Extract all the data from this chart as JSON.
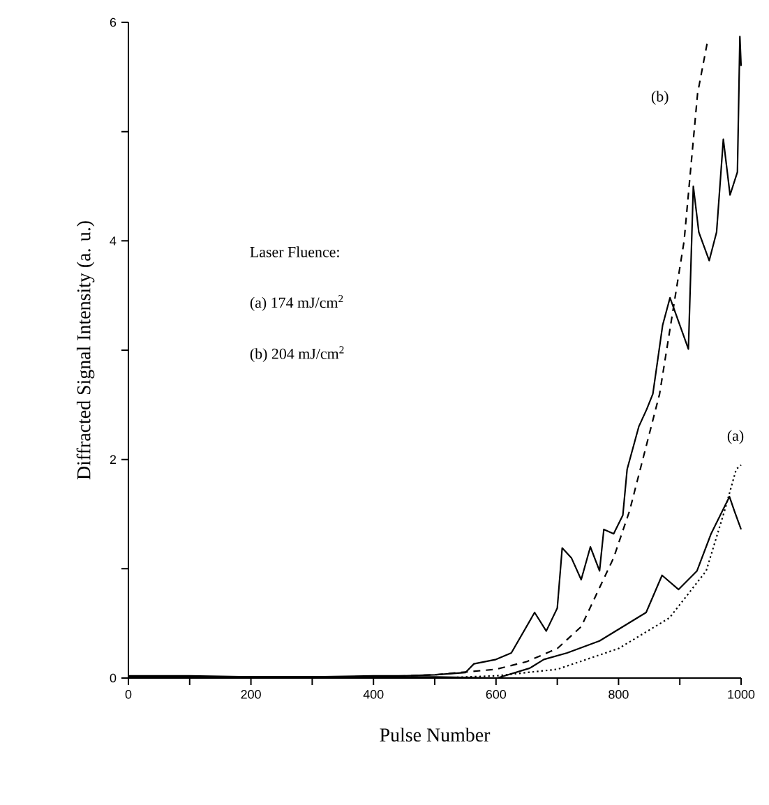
{
  "chart_data": {
    "type": "line",
    "xlabel": "Pulse Number",
    "ylabel": "Diffracted Signal Intensity (a. u.)",
    "xlim": [
      0,
      1000
    ],
    "ylim": [
      0,
      6
    ],
    "xticks": [
      0,
      {
        "value": 100,
        "label": null
      },
      200,
      {
        "value": 300,
        "label": null
      },
      400,
      {
        "value": 500,
        "label": null
      },
      600,
      {
        "value": 700,
        "label": null
      },
      800,
      {
        "value": 900,
        "label": null
      },
      1000
    ],
    "yticks": [
      0,
      {
        "value": 1,
        "label": null
      },
      2,
      {
        "value": 3,
        "label": null
      },
      4,
      {
        "value": 5,
        "label": null
      },
      6
    ],
    "grid": false,
    "legend": false,
    "marker": "none",
    "annotations": [
      "Laser Fluence:",
      "(a) 174 mJ/cm$^{2}$",
      "(b) 204 mJ/cm$^{2}$"
    ],
    "series": [
      {
        "color": "#000000",
        "line_style": "solid",
        "x": [
          0,
          100,
          200,
          300,
          400,
          450,
          500,
          550,
          564,
          600,
          625,
          663,
          682,
          700,
          708,
          723,
          739,
          754,
          769,
          776,
          792,
          807,
          814,
          833,
          846,
          856,
          872,
          884,
          914,
          922,
          931,
          948,
          960,
          971,
          982,
          994,
          998,
          1000
        ],
        "values": [
          0.02,
          0.02,
          0.01,
          0.01,
          0.02,
          0.02,
          0.03,
          0.05,
          0.13,
          0.17,
          0.23,
          0.6,
          0.43,
          0.64,
          1.19,
          1.1,
          0.9,
          1.2,
          0.98,
          1.36,
          1.32,
          1.49,
          1.91,
          2.3,
          2.46,
          2.6,
          3.23,
          3.48,
          3.01,
          4.5,
          4.08,
          3.82,
          4.08,
          4.93,
          4.42,
          4.63,
          5.87,
          5.6
        ]
      },
      {
        "name": "(b)",
        "color": "#000000",
        "line_style": "dashed",
        "x": [
          400,
          500,
          600,
          650,
          700,
          739,
          792,
          818,
          867,
          907,
          929,
          945
        ],
        "values": [
          0.01,
          0.03,
          0.08,
          0.15,
          0.27,
          0.47,
          1.1,
          1.53,
          2.6,
          4.0,
          5.35,
          5.82
        ]
      },
      {
        "color": "#000000",
        "line_style": "solid",
        "x": [
          0,
          200,
          400,
          500,
          602,
          655,
          678,
          716,
          769,
          807,
          845,
          871,
          898,
          928,
          951,
          966,
          981,
          989,
          1000
        ],
        "values": [
          0.01,
          0.01,
          0.01,
          0.01,
          0.0,
          0.09,
          0.17,
          0.23,
          0.34,
          0.47,
          0.6,
          0.94,
          0.81,
          0.98,
          1.32,
          1.49,
          1.66,
          1.53,
          1.36
        ]
      },
      {
        "name": "(a)",
        "color": "#000000",
        "line_style": "dotted",
        "x": [
          500,
          600,
          700,
          800,
          883,
          943,
          973,
          992,
          1000
        ],
        "values": [
          0.0,
          0.02,
          0.08,
          0.27,
          0.55,
          0.98,
          1.53,
          1.91,
          1.95
        ]
      }
    ]
  }
}
